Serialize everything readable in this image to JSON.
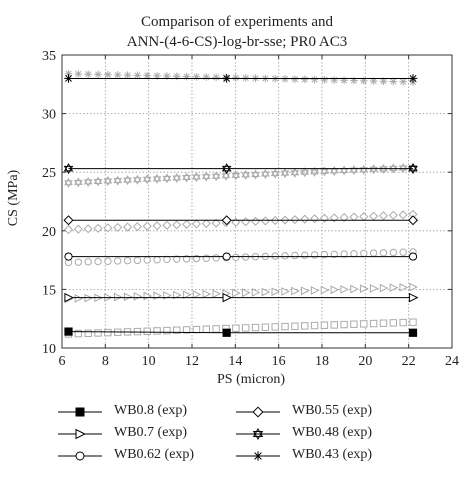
{
  "chart_data": {
    "type": "line",
    "title_lines": [
      "Comparison of experiments and",
      "ANN-(4-6-CS)-log-br-sse; PR0 AC3"
    ],
    "xlabel": "PS (micron)",
    "ylabel": "CS (MPa)",
    "xlim": [
      6,
      24
    ],
    "ylim": [
      10,
      35
    ],
    "xticks": [
      "6",
      "8",
      "10",
      "12",
      "14",
      "16",
      "18",
      "20",
      "22",
      "24"
    ],
    "yticks": [
      "10",
      "15",
      "20",
      "25",
      "30",
      "35"
    ],
    "grid": true,
    "legend_position": "bottom",
    "experiments": [
      {
        "name": "WB0.8 (exp)",
        "marker": "square",
        "x": [
          6.3,
          13.6,
          22.2
        ],
        "y": [
          11.4,
          11.3,
          11.3
        ]
      },
      {
        "name": "WB0.7 (exp)",
        "marker": "triangle",
        "x": [
          6.3,
          13.6,
          22.2
        ],
        "y": [
          14.3,
          14.3,
          14.3
        ]
      },
      {
        "name": "WB0.62 (exp)",
        "marker": "circle",
        "x": [
          6.3,
          13.6,
          22.2
        ],
        "y": [
          17.8,
          17.8,
          17.8
        ]
      },
      {
        "name": "WB0.55 (exp)",
        "marker": "diamond",
        "x": [
          6.3,
          13.6,
          22.2
        ],
        "y": [
          20.9,
          20.9,
          20.9
        ]
      },
      {
        "name": "WB0.48 (exp)",
        "marker": "hexagram",
        "x": [
          6.3,
          13.6,
          22.2
        ],
        "y": [
          25.3,
          25.3,
          25.3
        ]
      },
      {
        "name": "WB0.43 (exp)",
        "marker": "asterisk",
        "x": [
          6.3,
          13.6,
          22.2
        ],
        "y": [
          33.0,
          33.0,
          33.0
        ]
      }
    ],
    "predictions": [
      {
        "marker": "square",
        "x_range": [
          6.3,
          22.2
        ],
        "y_start": 11.2,
        "y_end": 12.2
      },
      {
        "marker": "triangle",
        "x_range": [
          6.3,
          22.2
        ],
        "y_start": 14.2,
        "y_end": 15.2
      },
      {
        "marker": "circle",
        "x_range": [
          6.3,
          22.2
        ],
        "y_start": 17.3,
        "y_end": 18.2
      },
      {
        "marker": "diamond",
        "x_range": [
          6.3,
          22.2
        ],
        "y_start": 20.1,
        "y_end": 21.4
      },
      {
        "marker": "hexagram",
        "x_range": [
          6.3,
          22.2
        ],
        "y_start": 24.1,
        "y_end": 25.4
      },
      {
        "marker": "asterisk",
        "x_range": [
          6.3,
          22.2
        ],
        "y_start": 33.4,
        "y_end": 32.7
      }
    ],
    "prediction_points": 36,
    "colors": {
      "line": "#000000",
      "prediction": "#aaaaaa",
      "grid": "#9a9a9a",
      "axis": "#333333"
    }
  }
}
